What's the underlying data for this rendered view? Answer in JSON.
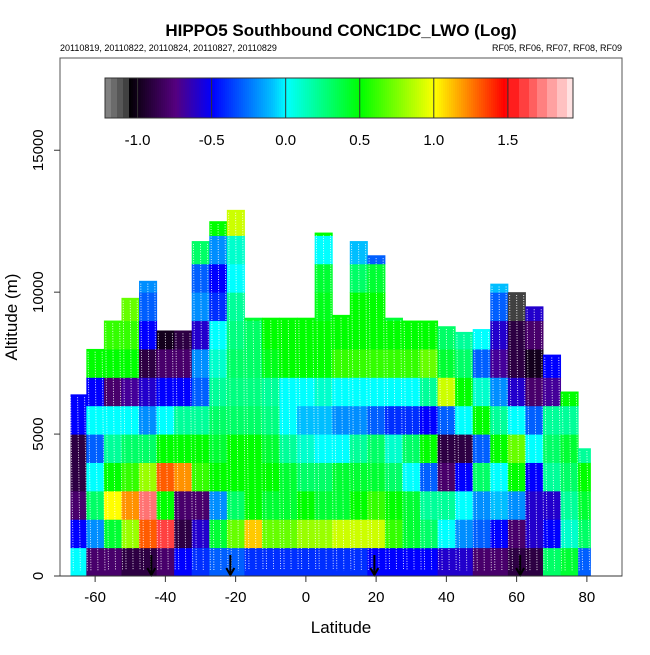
{
  "chart_data": {
    "type": "heatmap",
    "title": "HIPPO5 Southbound CONC1DC_LWO (Log)",
    "subtitle_left": "20110819, 20110822, 20110824, 20110827, 20110829",
    "subtitle_right": "RF05, RF06, RF07, RF08, RF09",
    "xlabel": "Latitude",
    "ylabel": "Altitude (m)",
    "xlim": [
      -70,
      90
    ],
    "ylim": [
      0,
      18250
    ],
    "x_ticks": [
      -60,
      -40,
      -20,
      0,
      20,
      40,
      60,
      80
    ],
    "x_tick_labels": [
      "-60",
      "-40",
      "-20",
      "0",
      "20",
      "40",
      "60",
      "80"
    ],
    "y_ticks": [
      0,
      5000,
      10000,
      15000
    ],
    "y_tick_labels": [
      "0",
      "5000",
      "10000",
      "15000"
    ],
    "colorbar": {
      "range": [
        -1.22,
        1.94
      ],
      "ticks": [
        -1.0,
        -0.5,
        0.0,
        0.5,
        1.0,
        1.5
      ],
      "tick_labels": [
        "-1.0",
        "-0.5",
        "0.0",
        "0.5",
        "1.0",
        "1.5"
      ],
      "placement": "top, inside plot",
      "colors": {
        "low": "#808080",
        "black": "#000000",
        "purple": "#55007f",
        "blue": "#0000ff",
        "cyan": "#00ffff",
        "green": "#00ff00",
        "yellow": "#ffff00",
        "red": "#ff0000",
        "high": "#ffecec"
      }
    },
    "layer_thickness_m": 1000,
    "column_width_deg": 5,
    "columns": [
      {
        "lat": -65,
        "top": 6400,
        "values": [
          0.0,
          -0.5,
          -0.8,
          -0.9,
          -0.9,
          -0.5,
          -0.5
        ]
      },
      {
        "lat": -60,
        "top": 8000,
        "values": [
          -0.8,
          -0.2,
          0.3,
          0.0,
          -0.3,
          0.0,
          -0.5,
          0.5
        ]
      },
      {
        "lat": -55,
        "top": 9000,
        "values": [
          -0.8,
          0.4,
          1.0,
          0.5,
          0.2,
          0.0,
          -0.8,
          0.5,
          0.6
        ]
      },
      {
        "lat": -50,
        "top": 9800,
        "values": [
          -0.9,
          0.8,
          1.2,
          0.6,
          0.3,
          0.0,
          -0.7,
          0.5,
          0.6,
          0.7
        ]
      },
      {
        "lat": -45,
        "top": 10400,
        "values": [
          -0.9,
          1.3,
          1.7,
          0.8,
          0.3,
          -0.2,
          -0.6,
          -0.9,
          -0.5,
          -0.3,
          -0.2
        ]
      },
      {
        "lat": -40,
        "top": 8650,
        "values": [
          -0.8,
          1.6,
          0.5,
          1.3,
          0.5,
          0.0,
          -0.5,
          -0.8,
          -1.0
        ]
      },
      {
        "lat": -35,
        "top": 8650,
        "values": [
          -0.5,
          -0.9,
          -0.8,
          1.2,
          0.5,
          0.2,
          -0.5,
          -0.8,
          -0.9
        ]
      },
      {
        "lat": -30,
        "top": 11800,
        "values": [
          -0.4,
          -0.6,
          -0.8,
          0.6,
          0.5,
          0.2,
          -0.3,
          -0.2,
          -0.6,
          -0.2,
          -0.3,
          0.3
        ]
      },
      {
        "lat": -25,
        "top": 12500,
        "values": [
          -0.3,
          0.4,
          -0.2,
          0.5,
          0.4,
          0.3,
          0.2,
          0.1,
          0.0,
          -0.4,
          -0.5,
          -0.2,
          0.5
        ]
      },
      {
        "lat": -20,
        "top": 12900,
        "values": [
          -0.3,
          0.7,
          0.3,
          0.5,
          0.5,
          0.3,
          0.25,
          0.3,
          0.25,
          0.2,
          0.0,
          0.1,
          0.9
        ]
      },
      {
        "lat": -15,
        "top": 9100,
        "values": [
          -0.4,
          1.1,
          0.5,
          0.5,
          0.5,
          0.3,
          0.25,
          0.3,
          0.3,
          0.4
        ]
      },
      {
        "lat": -10,
        "top": 9100,
        "values": [
          -0.4,
          0.7,
          0.4,
          0.5,
          0.4,
          0.25,
          0.2,
          0.45,
          0.5,
          0.5
        ]
      },
      {
        "lat": -5,
        "top": 9100,
        "values": [
          -0.4,
          0.7,
          0.4,
          0.4,
          0.2,
          0.0,
          0.0,
          0.5,
          0.5,
          0.5
        ]
      },
      {
        "lat": 0,
        "top": 9100,
        "values": [
          -0.4,
          0.8,
          0.5,
          0.3,
          0.1,
          -0.1,
          0.0,
          0.5,
          0.5,
          0.5
        ]
      },
      {
        "lat": 5,
        "top": 12100,
        "values": [
          -0.4,
          0.8,
          0.4,
          0.3,
          0.0,
          -0.1,
          0.1,
          0.5,
          0.5,
          0.45,
          0.4,
          0.0,
          0.5
        ]
      },
      {
        "lat": 10,
        "top": 9200,
        "values": [
          -0.4,
          0.9,
          0.4,
          0.4,
          0.0,
          -0.2,
          0.0,
          0.6,
          0.5,
          0.5
        ]
      },
      {
        "lat": 15,
        "top": 11800,
        "values": [
          -0.4,
          0.9,
          0.5,
          0.4,
          0.2,
          -0.2,
          0.0,
          0.6,
          0.5,
          0.5,
          0.3,
          -0.1
        ]
      },
      {
        "lat": 20,
        "top": 11300,
        "values": [
          -0.5,
          0.9,
          0.6,
          0.4,
          0.3,
          -0.3,
          0.0,
          0.6,
          0.5,
          0.5,
          0.4,
          -0.3
        ]
      },
      {
        "lat": 25,
        "top": 9100,
        "values": [
          -0.5,
          0.6,
          0.5,
          0.3,
          0.1,
          -0.4,
          0.0,
          0.6,
          0.5,
          0.4
        ]
      },
      {
        "lat": 30,
        "top": 9000,
        "values": [
          -0.5,
          0.4,
          0.4,
          0.0,
          0.3,
          -0.4,
          0.0,
          0.6,
          0.5,
          0.3
        ]
      },
      {
        "lat": 35,
        "top": 9000,
        "values": [
          -0.5,
          0.3,
          0.2,
          -0.3,
          0.5,
          -0.5,
          0.2,
          0.7,
          0.5,
          0.3
        ]
      },
      {
        "lat": 40,
        "top": 8800,
        "values": [
          -0.6,
          0.0,
          0.2,
          -0.8,
          -0.9,
          -0.3,
          0.9,
          0.4,
          0.3
        ]
      },
      {
        "lat": 45,
        "top": 8600,
        "values": [
          -0.6,
          -0.2,
          0.0,
          -0.5,
          -0.9,
          0.0,
          0.5,
          0.3,
          0.2
        ]
      },
      {
        "lat": 50,
        "top": 8700,
        "values": [
          -0.8,
          -0.3,
          -0.2,
          0.3,
          -0.3,
          0.5,
          0.1,
          -0.3,
          0.0
        ]
      },
      {
        "lat": 55,
        "top": 10300,
        "values": [
          -0.8,
          -0.5,
          -0.1,
          0.0,
          0.5,
          0.2,
          -0.2,
          -0.7,
          -0.6,
          -0.3,
          -0.1
        ]
      },
      {
        "lat": 60,
        "top": 10000,
        "values": [
          -0.9,
          -0.8,
          -0.2,
          0.5,
          0.7,
          0.0,
          -0.6,
          -0.9,
          -0.9,
          -1.1
        ]
      },
      {
        "lat": 65,
        "top": 9500,
        "values": [
          -0.9,
          -0.6,
          -0.6,
          -0.5,
          0.0,
          -0.3,
          -0.8,
          -1.0,
          -0.8,
          -0.6
        ]
      },
      {
        "lat": 70,
        "top": 7800,
        "values": [
          0.3,
          -0.5,
          -0.6,
          0.2,
          0.3,
          0.2,
          -0.7,
          -0.5
        ]
      },
      {
        "lat": 75,
        "top": 6500,
        "values": [
          0.4,
          0.1,
          0.2,
          0.3,
          0.4,
          0.2,
          0.5
        ]
      },
      {
        "lat": 80,
        "top": 4500,
        "values": [
          -0.3,
          0.3,
          0.4,
          0.5,
          0.2
        ]
      }
    ],
    "data_extent_lat": [
      -67,
      81
    ],
    "markers": {
      "type": "down-arrow",
      "lat": [
        -44,
        -21.5,
        19.5,
        61
      ],
      "from_alt": 740
    }
  }
}
